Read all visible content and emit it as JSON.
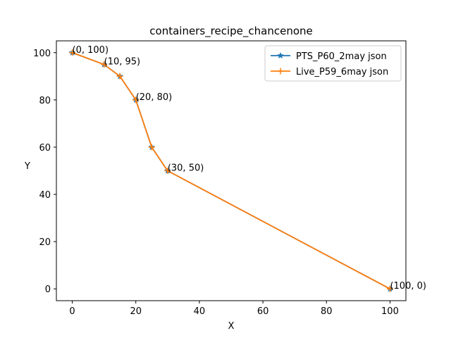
{
  "chart_data": {
    "type": "line",
    "title": "containers_recipe_chancenone",
    "xlabel": "X",
    "ylabel": "Y",
    "xlim": [
      -5,
      105
    ],
    "ylim": [
      -5,
      105
    ],
    "xticks": [
      0,
      20,
      40,
      60,
      80,
      100
    ],
    "yticks": [
      0,
      20,
      40,
      60,
      80,
      100
    ],
    "grid": false,
    "legend_position": "top-right",
    "series": [
      {
        "name": "PTS_P60_2may json",
        "color": "#1f77b4",
        "marker": "star",
        "x": [
          0,
          10,
          15,
          20,
          25,
          30,
          100
        ],
        "y": [
          100,
          95,
          90,
          80,
          60,
          50,
          0
        ]
      },
      {
        "name": "Live_P59_6may json",
        "color": "#ff7f0e",
        "marker": "plus",
        "x": [
          0,
          10,
          15,
          20,
          25,
          30,
          100
        ],
        "y": [
          100,
          95,
          90,
          80,
          60,
          50,
          0
        ]
      }
    ],
    "annotations": [
      {
        "text": "(0, 100)",
        "x": 0,
        "y": 100
      },
      {
        "text": "(10, 95)",
        "x": 10,
        "y": 95
      },
      {
        "text": "(20, 80)",
        "x": 20,
        "y": 80
      },
      {
        "text": "(30, 50)",
        "x": 30,
        "y": 50
      },
      {
        "text": "(100, 0)",
        "x": 100,
        "y": 0
      }
    ]
  }
}
